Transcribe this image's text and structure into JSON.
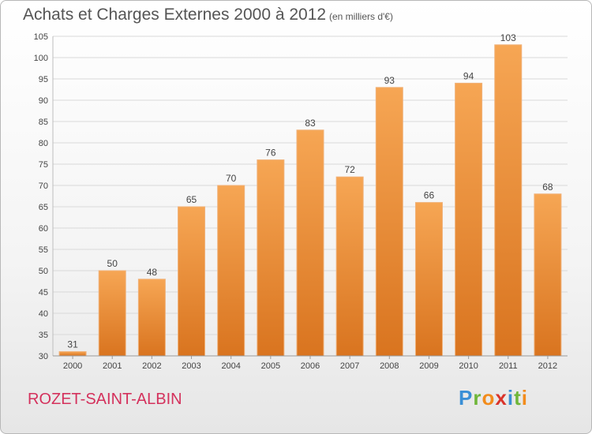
{
  "title": "Achats et Charges Externes 2000 à 2012",
  "subtitle": "(en milliers d'€)",
  "commune": "ROZET-SAINT-ALBIN",
  "brand": {
    "text": "Proxiti",
    "letter_colors": [
      "#3a8fd6",
      "#6fb63a",
      "#f28c1c",
      "#d9342b",
      "#3a8fd6",
      "#6fb63a",
      "#f28c1c"
    ]
  },
  "colors": {
    "bar_light": "#f6a654",
    "bar_dark": "#d9741f",
    "grid": "#d9d9d9",
    "axis_text": "#444444",
    "label_text": "#444444"
  },
  "chart_data": {
    "type": "bar",
    "categories": [
      "2000",
      "2001",
      "2002",
      "2003",
      "2004",
      "2005",
      "2006",
      "2007",
      "2008",
      "2009",
      "2010",
      "2011",
      "2012"
    ],
    "values": [
      31,
      50,
      48,
      65,
      70,
      76,
      83,
      72,
      93,
      66,
      94,
      103,
      68
    ],
    "ylim": [
      30,
      105
    ],
    "yticks": [
      30,
      35,
      40,
      45,
      50,
      55,
      60,
      65,
      70,
      75,
      80,
      85,
      90,
      95,
      100,
      105
    ],
    "grid": true
  }
}
